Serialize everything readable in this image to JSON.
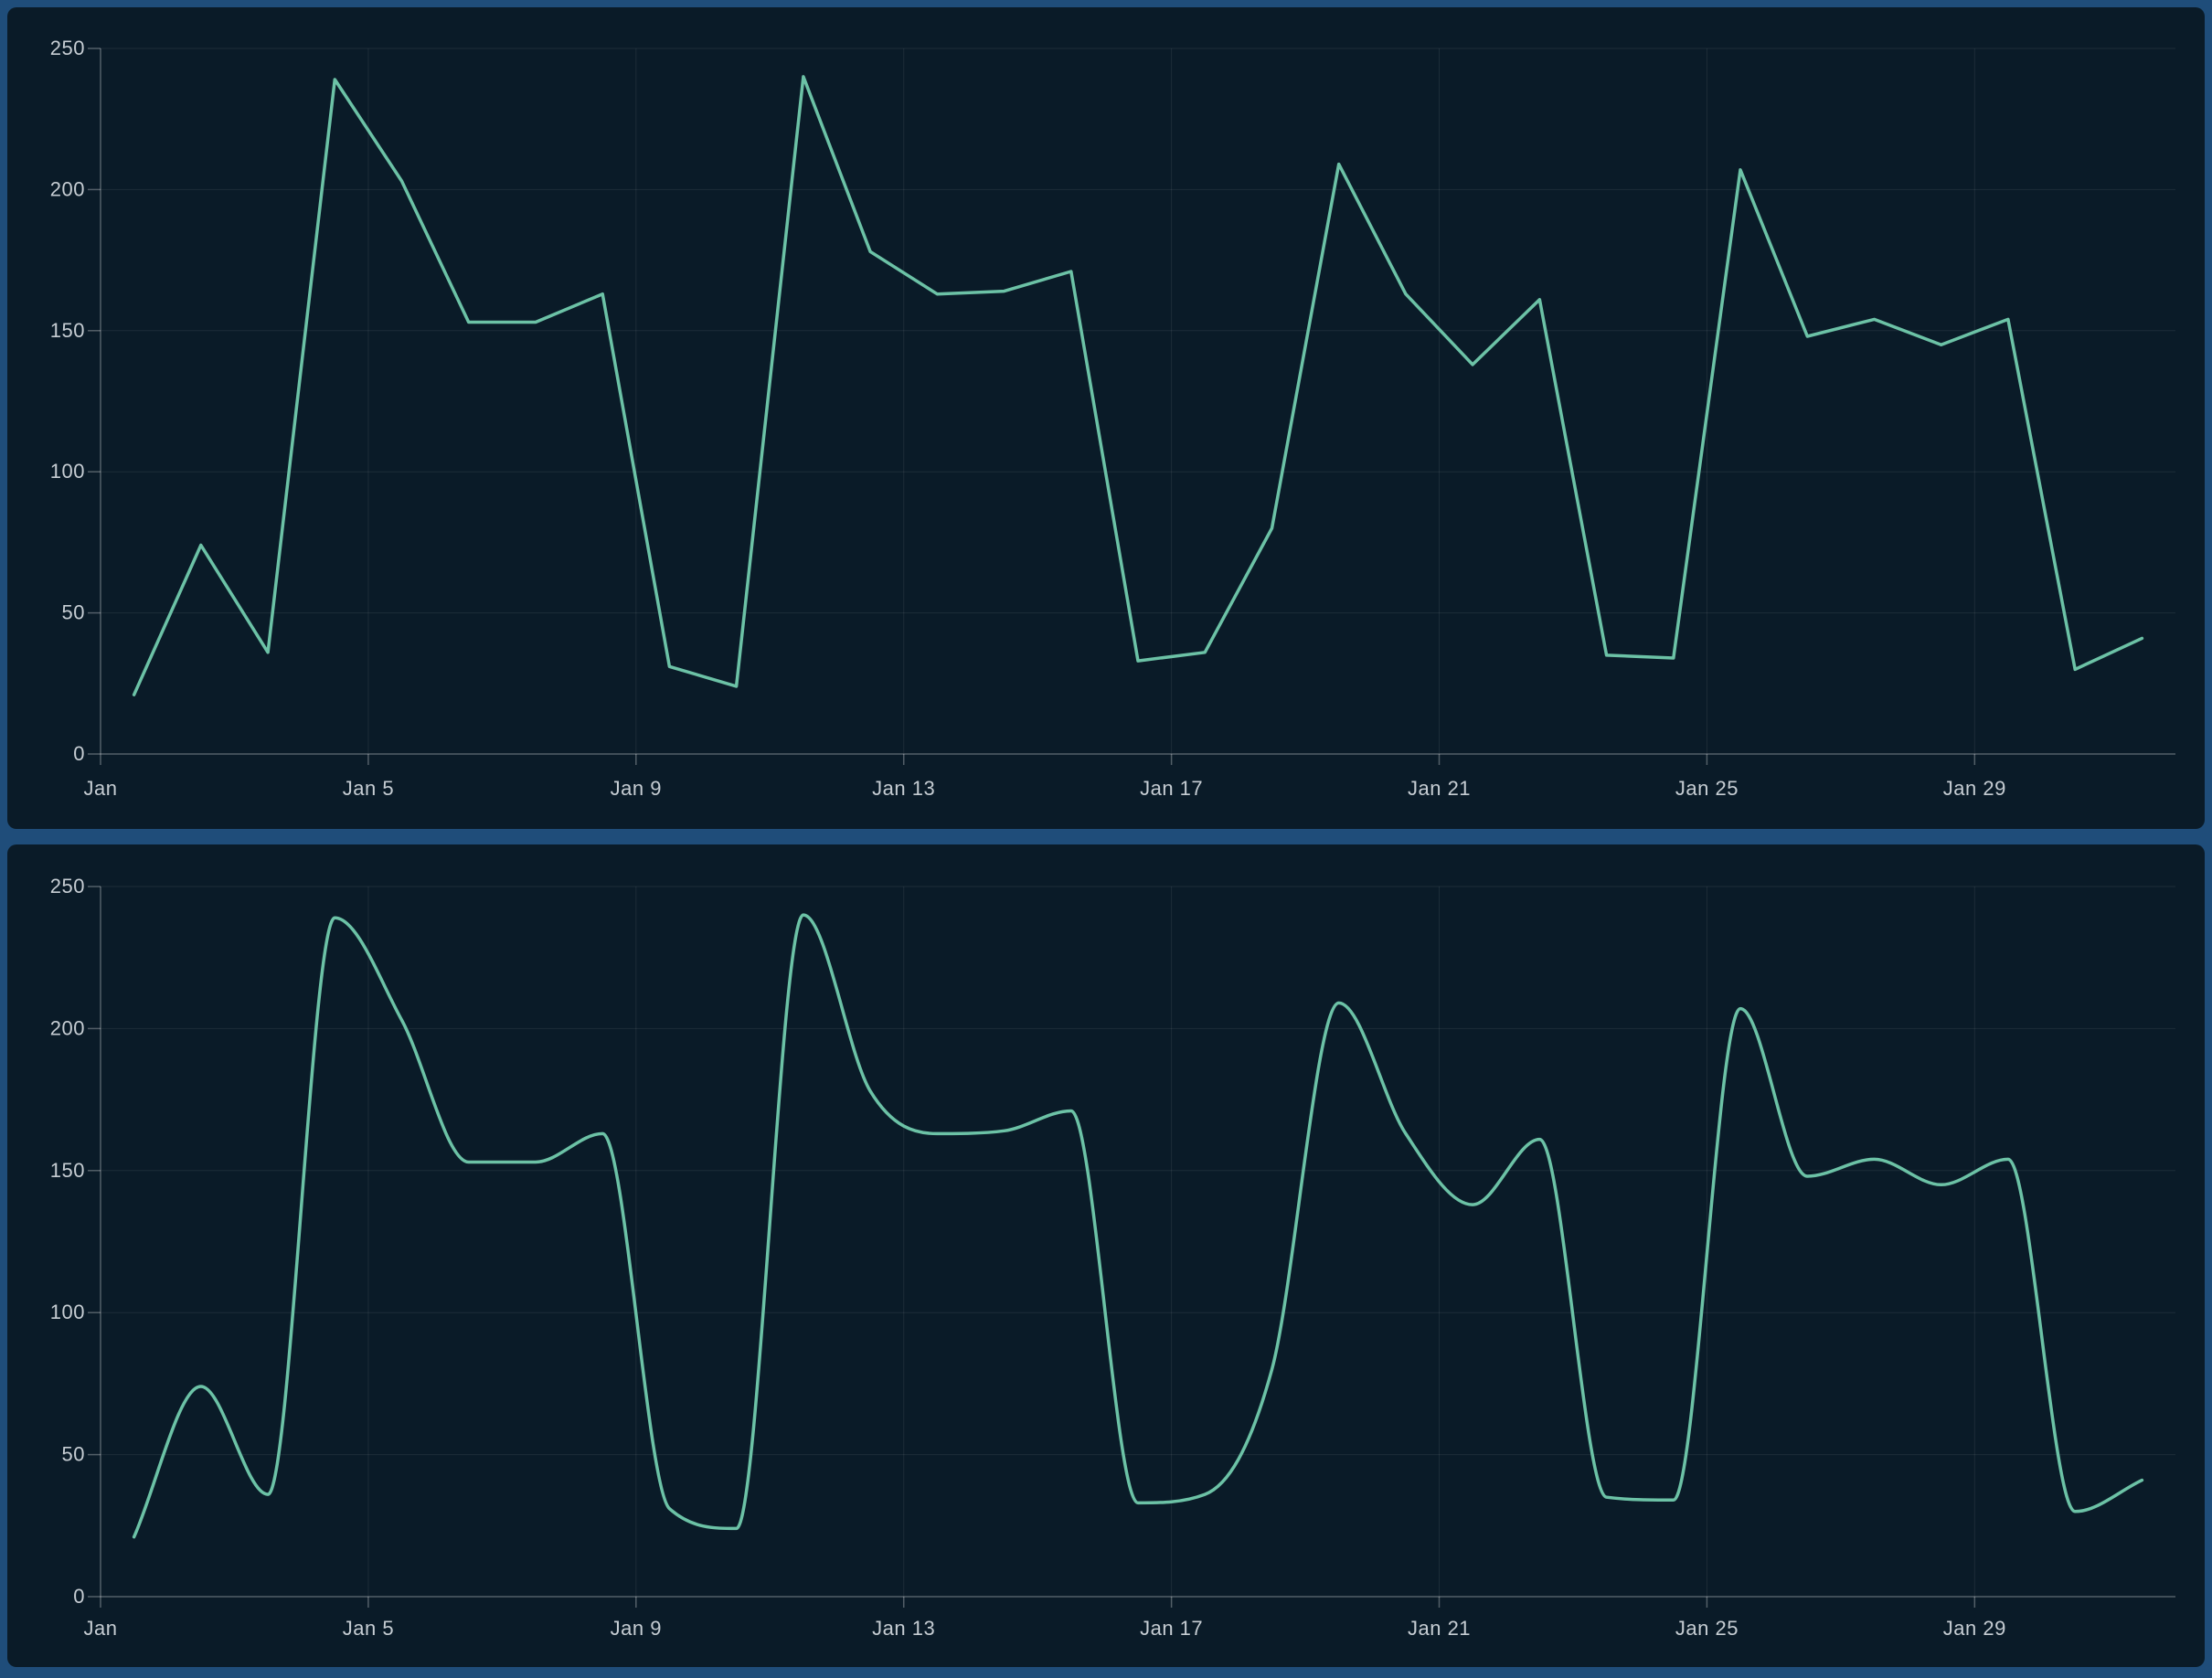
{
  "colors": {
    "frame_background": "#1f4d7a",
    "panel_background": "#0a1b28",
    "line": "#6cc2a6",
    "axis_label": "#c6cdd3",
    "grid_line": "rgba(255,255,255,0.08)",
    "axis_line": "rgba(255,255,255,0.30)"
  },
  "chart_data": [
    {
      "type": "line",
      "title": "",
      "xlabel": "",
      "ylabel": "",
      "line_style": "straight",
      "line_color": "#6cc2a6",
      "grid": true,
      "legend": false,
      "ylim": [
        0,
        250
      ],
      "y_ticks": [
        0,
        50,
        100,
        150,
        200,
        250
      ],
      "x_tick_labels": [
        "Jan",
        "Jan 5",
        "Jan 9",
        "Jan 13",
        "Jan 17",
        "Jan 21",
        "Jan 25",
        "Jan 29"
      ],
      "x": [
        "Jan 1",
        "Jan 2",
        "Jan 3",
        "Jan 4",
        "Jan 5",
        "Jan 6",
        "Jan 7",
        "Jan 8",
        "Jan 9",
        "Jan 10",
        "Jan 11",
        "Jan 12",
        "Jan 13",
        "Jan 14",
        "Jan 15",
        "Jan 16",
        "Jan 17",
        "Jan 18",
        "Jan 19",
        "Jan 20",
        "Jan 21",
        "Jan 22",
        "Jan 23",
        "Jan 24",
        "Jan 25",
        "Jan 26",
        "Jan 27",
        "Jan 28",
        "Jan 29",
        "Jan 30",
        "Jan 31"
      ],
      "values": [
        21,
        74,
        36,
        239,
        203,
        153,
        153,
        163,
        31,
        24,
        240,
        178,
        163,
        164,
        171,
        33,
        36,
        80,
        209,
        163,
        138,
        161,
        35,
        34,
        207,
        148,
        154,
        145,
        154,
        30,
        41
      ]
    },
    {
      "type": "line",
      "title": "",
      "xlabel": "",
      "ylabel": "",
      "line_style": "smooth",
      "line_color": "#6cc2a6",
      "grid": true,
      "legend": false,
      "ylim": [
        0,
        250
      ],
      "y_ticks": [
        0,
        50,
        100,
        150,
        200,
        250
      ],
      "x_tick_labels": [
        "Jan",
        "Jan 5",
        "Jan 9",
        "Jan 13",
        "Jan 17",
        "Jan 21",
        "Jan 25",
        "Jan 29"
      ],
      "x": [
        "Jan 1",
        "Jan 2",
        "Jan 3",
        "Jan 4",
        "Jan 5",
        "Jan 6",
        "Jan 7",
        "Jan 8",
        "Jan 9",
        "Jan 10",
        "Jan 11",
        "Jan 12",
        "Jan 13",
        "Jan 14",
        "Jan 15",
        "Jan 16",
        "Jan 17",
        "Jan 18",
        "Jan 19",
        "Jan 20",
        "Jan 21",
        "Jan 22",
        "Jan 23",
        "Jan 24",
        "Jan 25",
        "Jan 26",
        "Jan 27",
        "Jan 28",
        "Jan 29",
        "Jan 30",
        "Jan 31"
      ],
      "values": [
        21,
        74,
        36,
        239,
        203,
        153,
        153,
        163,
        31,
        24,
        240,
        178,
        163,
        164,
        171,
        33,
        36,
        80,
        209,
        163,
        138,
        161,
        35,
        34,
        207,
        148,
        154,
        145,
        154,
        30,
        41
      ]
    }
  ]
}
